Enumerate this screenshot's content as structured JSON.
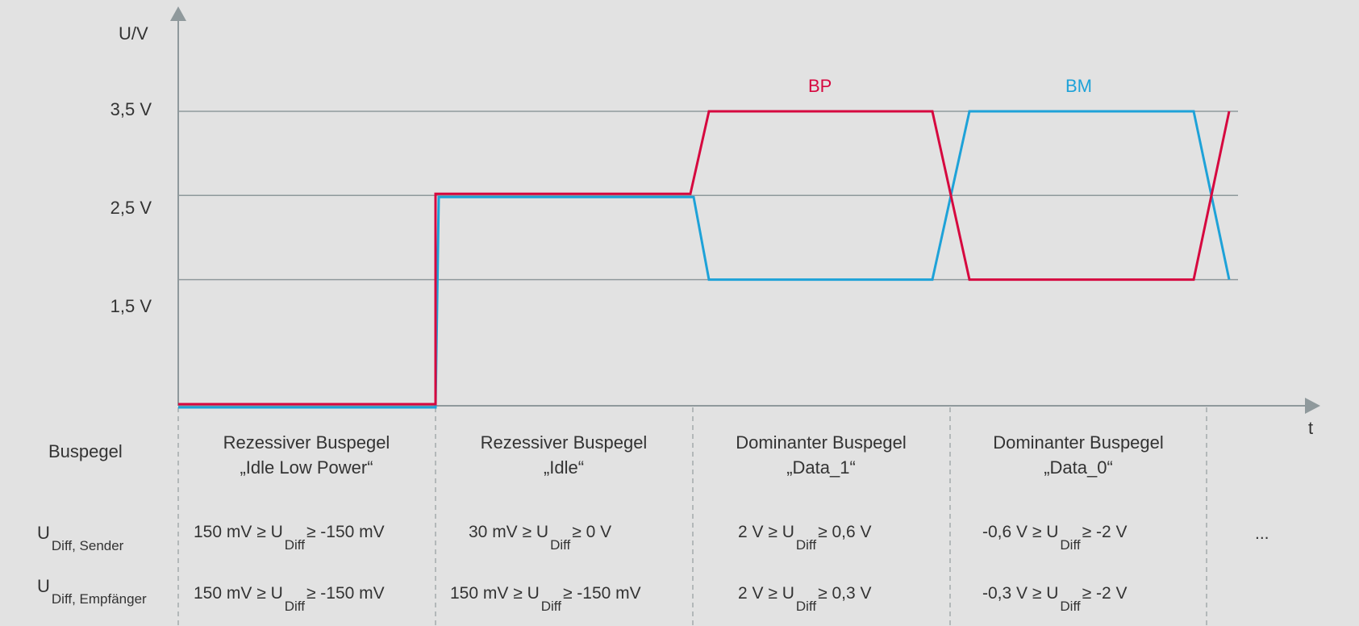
{
  "colors": {
    "BP": "#d6083f",
    "BM": "#1ea2d8",
    "axis": "#8f999c",
    "grid": "#8f999c",
    "background": "#e2e2e2",
    "text": "#333333"
  },
  "axes": {
    "y_label": "U/V",
    "x_label": "t",
    "y_ticks": [
      "3,5 V",
      "2,5 V",
      "1,5 V"
    ]
  },
  "series_labels": {
    "BP": "BP",
    "BM": "BM"
  },
  "row_header": {
    "buspegel": "Buspegel",
    "u_main_1": "U",
    "u_sub_1": "Diff, Sender",
    "u_main_2": "U",
    "u_sub_2": "Diff, Empfänger"
  },
  "columns": [
    {
      "title_1": "Rezessiver Buspegel",
      "title_2": "„Idle Low Power“",
      "sender": {
        "a": "150 mV ≥ U",
        "sub": "Diff",
        "b": "≥ -150 mV"
      },
      "empfaenger": {
        "a": "150 mV ≥ U",
        "sub": "Diff",
        "b": "≥ -150 mV"
      }
    },
    {
      "title_1": "Rezessiver Buspegel",
      "title_2": "„Idle“",
      "sender": {
        "a": "30 mV ≥ U",
        "sub": "Diff",
        "b": "≥ 0 V"
      },
      "empfaenger": {
        "a": "150 mV ≥ U",
        "sub": "Diff",
        "b": "≥ -150 mV"
      }
    },
    {
      "title_1": "Dominanter Buspegel",
      "title_2": "„Data_1“",
      "sender": {
        "a": "2 V ≥ U",
        "sub": "Diff",
        "b": "≥ 0,6 V"
      },
      "empfaenger": {
        "a": "2 V ≥ U",
        "sub": "Diff",
        "b": "≥ 0,3 V"
      }
    },
    {
      "title_1": "Dominanter Buspegel",
      "title_2": "„Data_0“",
      "sender": {
        "a": "-0,6 V ≥ U",
        "sub": "Diff",
        "b": "≥ -2 V"
      },
      "empfaenger": {
        "a": "-0,3 V ≥ U",
        "sub": "Diff",
        "b": "≥ -2 V"
      }
    }
  ],
  "ellipsis": "...",
  "signal_data": {
    "phases": [
      "Idle Low Power",
      "Idle",
      "Data_1",
      "Data_0"
    ],
    "BP_volts": [
      0,
      2.5,
      3.5,
      1.5
    ],
    "BM_volts": [
      0,
      2.5,
      1.5,
      3.5
    ]
  }
}
